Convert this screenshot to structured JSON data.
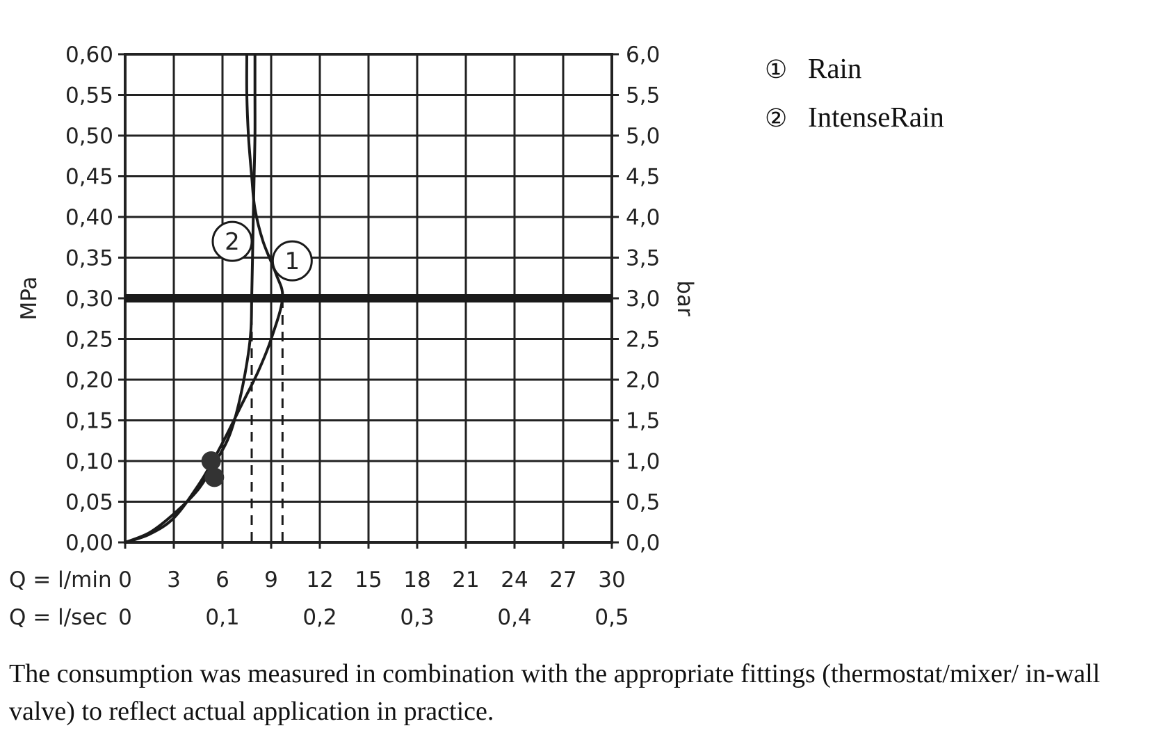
{
  "chart_data": {
    "type": "line",
    "x_axis": {
      "label": "Q = l/min",
      "ticks": [
        0,
        3,
        6,
        9,
        12,
        15,
        18,
        21,
        24,
        27,
        30
      ],
      "range": [
        0,
        30
      ],
      "secondary_label": "Q = l/sec",
      "secondary_ticks": [
        {
          "x": 0,
          "label": "0"
        },
        {
          "x": 6,
          "label": "0,1"
        },
        {
          "x": 12,
          "label": "0,2"
        },
        {
          "x": 18,
          "label": "0,3"
        },
        {
          "x": 24,
          "label": "0,4"
        },
        {
          "x": 30,
          "label": "0,5"
        }
      ]
    },
    "y_axis": {
      "label": "MPa",
      "range": [
        0,
        0.6
      ],
      "ticks": [
        {
          "v": 0.0,
          "label": "0,00"
        },
        {
          "v": 0.05,
          "label": "0,05"
        },
        {
          "v": 0.1,
          "label": "0,10"
        },
        {
          "v": 0.15,
          "label": "0,15"
        },
        {
          "v": 0.2,
          "label": "0,20"
        },
        {
          "v": 0.25,
          "label": "0,25"
        },
        {
          "v": 0.3,
          "label": "0,30"
        },
        {
          "v": 0.35,
          "label": "0,35"
        },
        {
          "v": 0.4,
          "label": "0,40"
        },
        {
          "v": 0.45,
          "label": "0,45"
        },
        {
          "v": 0.5,
          "label": "0,50"
        },
        {
          "v": 0.55,
          "label": "0,55"
        },
        {
          "v": 0.6,
          "label": "0,60"
        }
      ],
      "secondary_label": "bar",
      "secondary_ticks": [
        {
          "v": 0.0,
          "label": "0,0"
        },
        {
          "v": 0.05,
          "label": "0,5"
        },
        {
          "v": 0.1,
          "label": "1,0"
        },
        {
          "v": 0.15,
          "label": "1,5"
        },
        {
          "v": 0.2,
          "label": "2,0"
        },
        {
          "v": 0.25,
          "label": "2,5"
        },
        {
          "v": 0.3,
          "label": "3,0"
        },
        {
          "v": 0.35,
          "label": "3,5"
        },
        {
          "v": 0.4,
          "label": "4,0"
        },
        {
          "v": 0.45,
          "label": "4,5"
        },
        {
          "v": 0.5,
          "label": "5,0"
        },
        {
          "v": 0.55,
          "label": "5,5"
        },
        {
          "v": 0.6,
          "label": "6,0"
        }
      ]
    },
    "grid": true,
    "reference_line": {
      "y": 0.3
    },
    "series": [
      {
        "name": "Rain",
        "marker": "1",
        "points": [
          [
            0,
            0
          ],
          [
            1.5,
            0.01
          ],
          [
            3,
            0.03
          ],
          [
            4.5,
            0.07
          ],
          [
            5.4,
            0.1
          ],
          [
            6.2,
            0.13
          ],
          [
            7.2,
            0.17
          ],
          [
            8.2,
            0.21
          ],
          [
            9,
            0.25
          ],
          [
            9.7,
            0.3
          ],
          [
            9.3,
            0.33
          ],
          [
            8.5,
            0.37
          ],
          [
            8,
            0.41
          ],
          [
            7.8,
            0.45
          ],
          [
            7.6,
            0.5
          ],
          [
            7.5,
            0.55
          ],
          [
            7.5,
            0.6
          ]
        ],
        "dashed_drop_x": 9.7,
        "label_at": [
          10.3,
          0.346
        ]
      },
      {
        "name": "IntenseRain",
        "marker": "2",
        "points": [
          [
            0,
            0
          ],
          [
            1.5,
            0.012
          ],
          [
            3,
            0.035
          ],
          [
            4.5,
            0.065
          ],
          [
            5.6,
            0.1
          ],
          [
            6.4,
            0.13
          ],
          [
            7,
            0.17
          ],
          [
            7.5,
            0.22
          ],
          [
            7.75,
            0.26
          ],
          [
            7.8,
            0.3
          ],
          [
            7.85,
            0.35
          ],
          [
            7.9,
            0.4
          ],
          [
            7.95,
            0.45
          ],
          [
            8,
            0.5
          ],
          [
            8,
            0.55
          ],
          [
            8,
            0.6
          ]
        ],
        "dashed_drop_x": 7.8,
        "label_at": [
          6.6,
          0.37
        ]
      }
    ],
    "markers": [
      {
        "x": 5.3,
        "y": 0.1
      },
      {
        "x": 5.5,
        "y": 0.08
      }
    ],
    "legend": {
      "placement": "top-right",
      "entries": [
        {
          "symbol": "①",
          "name": "Rain"
        },
        {
          "symbol": "②",
          "name": "IntenseRain"
        }
      ]
    },
    "colors": {
      "lines": "#1a1a1a",
      "grid": "#222222"
    }
  },
  "note": "The consumption was measured in combination with the appropriate fittings (thermostat/mixer/ in-wall valve) to reflect actual application in practice."
}
